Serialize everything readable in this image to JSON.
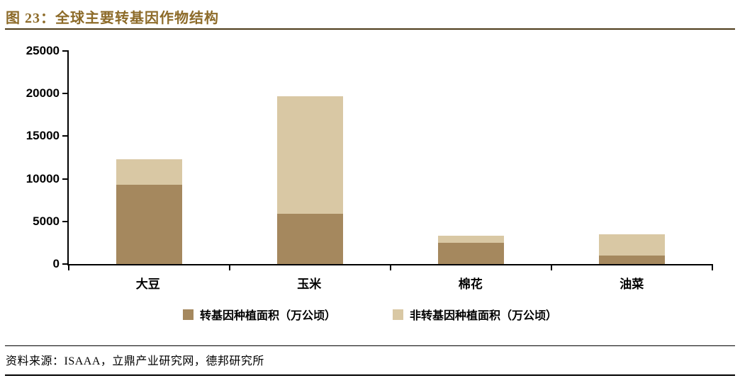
{
  "title": "图 23：全球主要转基因作物结构",
  "source": "资料来源：ISAAA，立鼎产业研究网，德邦研究所",
  "colors": {
    "title": "#8D6B29",
    "title_rule": "#4C3A18",
    "axis": "#000000",
    "gm_bar": "#A5885E",
    "non_gm_bar": "#D9C8A4"
  },
  "chart_data": {
    "type": "bar",
    "stacked": true,
    "title": "全球主要转基因作物结构",
    "categories": [
      "大豆",
      "玉米",
      "棉花",
      "油菜"
    ],
    "series": [
      {
        "name": "转基因种植面积（万公顷）",
        "color": "#A5885E",
        "values": [
          9300,
          5900,
          2500,
          1000
        ]
      },
      {
        "name": "非转基因种植面积（万公顷）",
        "color": "#D9C8A4",
        "values": [
          3000,
          13800,
          800,
          2500
        ]
      }
    ],
    "ylim": [
      0,
      25000
    ],
    "yticks": [
      0,
      5000,
      10000,
      15000,
      20000,
      25000
    ],
    "ylabel": "",
    "xlabel": "",
    "grid": false,
    "legend_position": "bottom"
  }
}
